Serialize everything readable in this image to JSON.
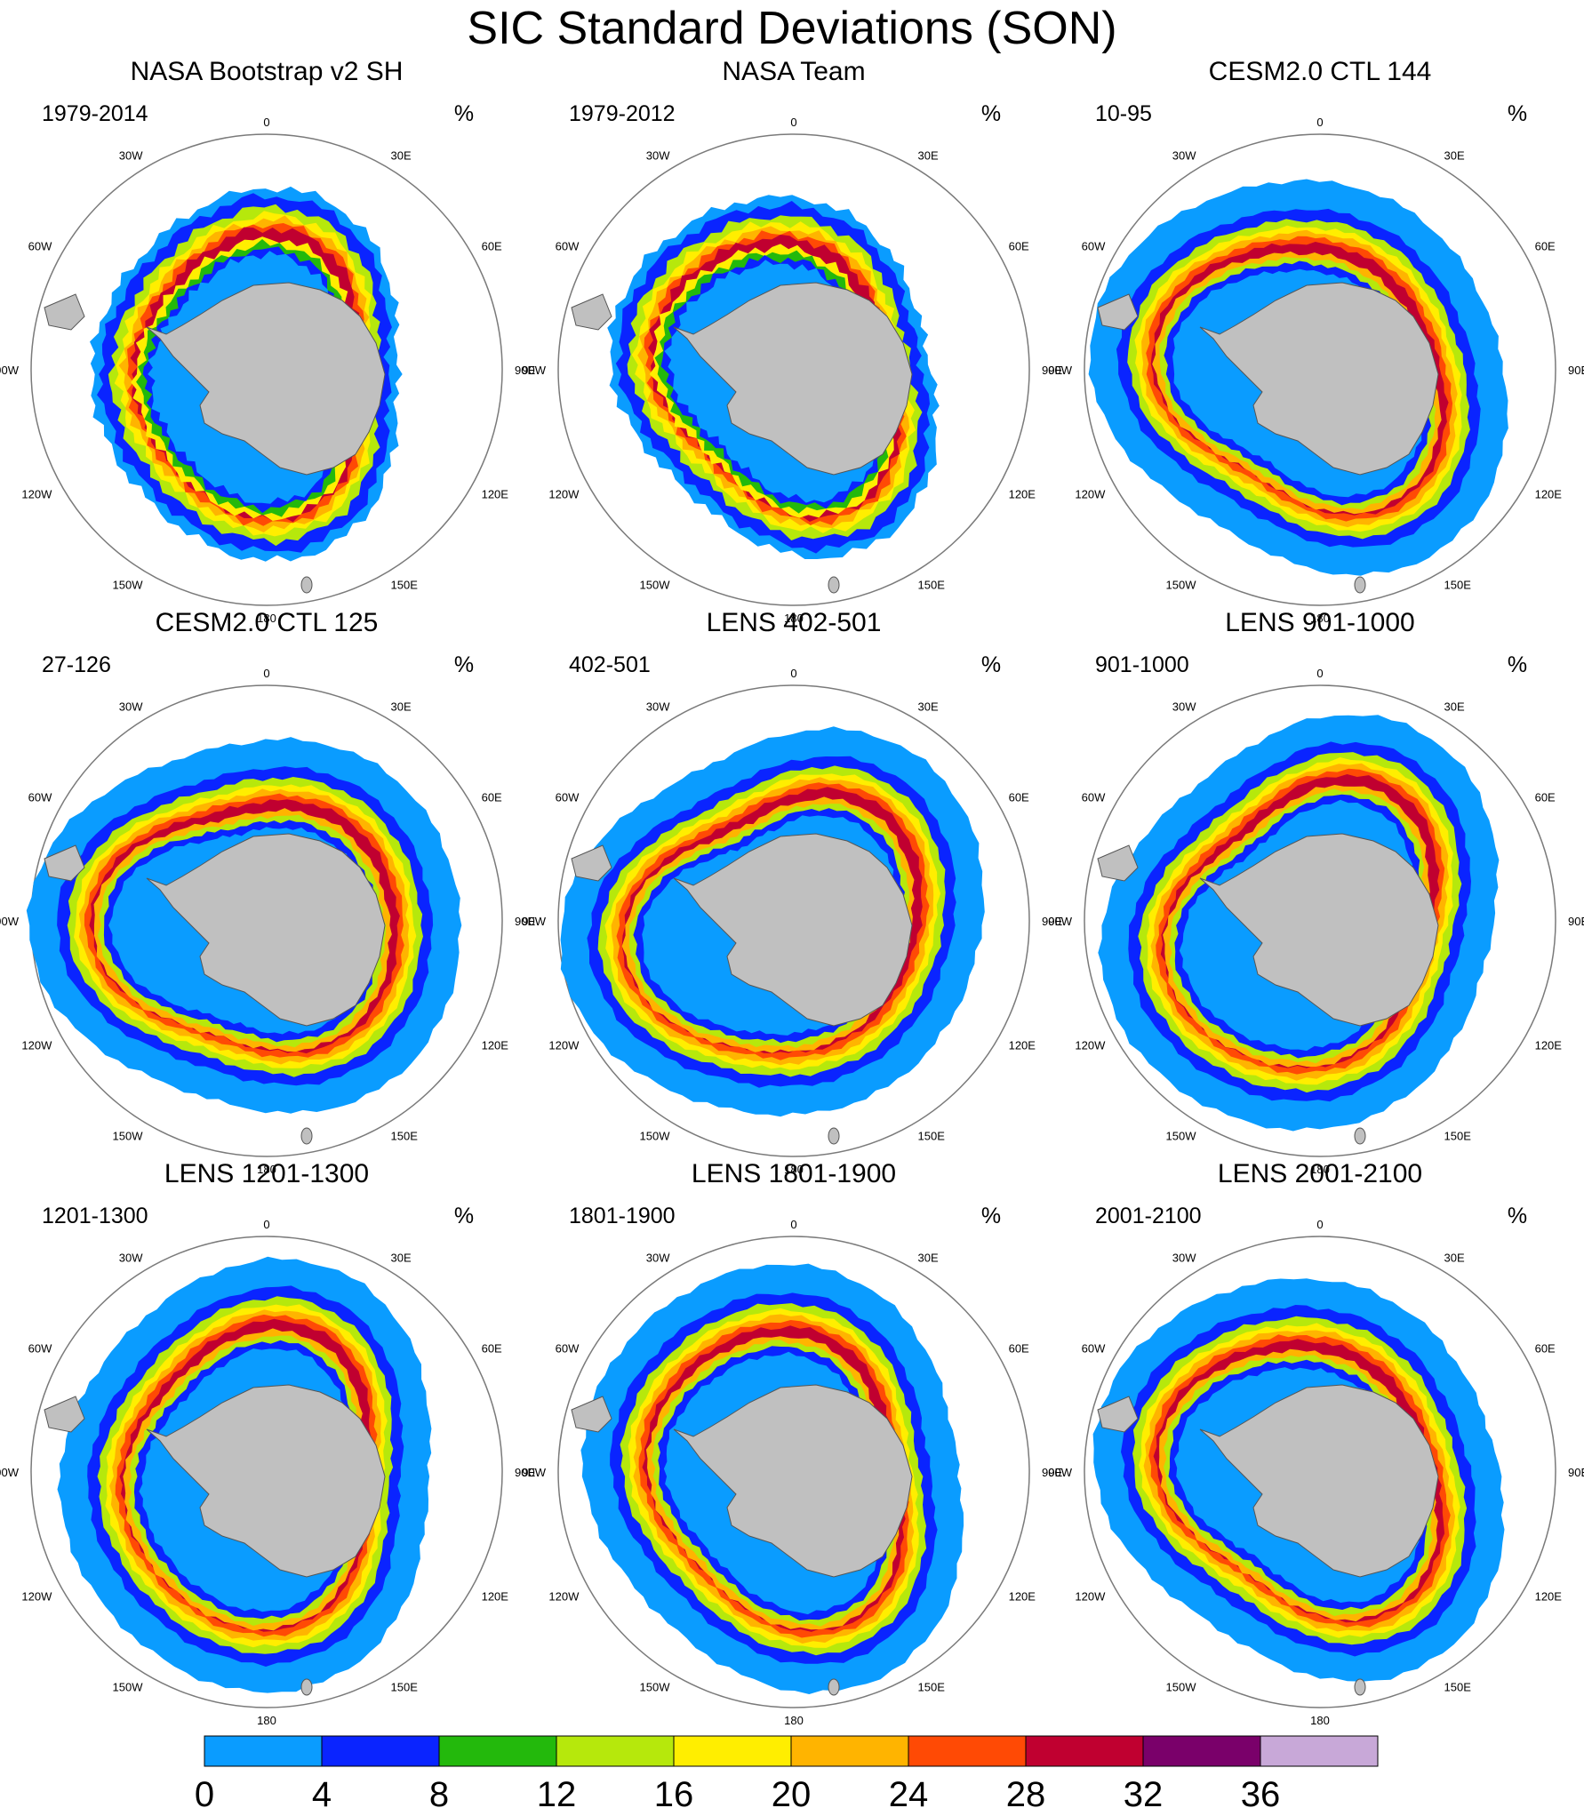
{
  "title": "SIC Standard Deviations (SON)",
  "unit_label": "%",
  "lon_labels": [
    "0",
    "30E",
    "60E",
    "90E",
    "120E",
    "150E",
    "180",
    "150W",
    "120W",
    "90W",
    "60W",
    "30W"
  ],
  "colors": {
    "land": "#c0c0c0",
    "coast": "#555555",
    "ring": "#7a7a7a"
  },
  "panel_labels": [
    {
      "title": "NASA Bootstrap v2 SH",
      "period": "1979-2014"
    },
    {
      "title": "NASA Team",
      "period": "1979-2012"
    },
    {
      "title": "CESM2.0 CTL 144",
      "period": "10-95"
    },
    {
      "title": "CESM2.0 CTL 125",
      "period": "27-126"
    },
    {
      "title": "LENS 402-501",
      "period": "402-501"
    },
    {
      "title": "LENS 901-1000",
      "period": "901-1000"
    },
    {
      "title": "LENS 1201-1300",
      "period": "1201-1300"
    },
    {
      "title": "LENS 1801-1900",
      "period": "1801-1900"
    },
    {
      "title": "LENS 2001-2100",
      "period": "2001-2100"
    }
  ],
  "chart_data": {
    "type": "heatmap",
    "title": "SIC Standard Deviations (SON)",
    "projection": "south polar stereographic",
    "units": "%",
    "colorbar": {
      "orientation": "horizontal",
      "placement": "bottom",
      "levels": [
        0,
        4,
        8,
        12,
        16,
        20,
        24,
        28,
        32,
        36
      ],
      "tick_labels": [
        "0",
        "4",
        "8",
        "12",
        "16",
        "20",
        "24",
        "28",
        "32",
        "36"
      ],
      "colors": [
        "#0a9cff",
        "#0a24ff",
        "#23b90c",
        "#b6e80c",
        "#ffee00",
        "#ffb400",
        "#ff4a05",
        "#c00030",
        "#7a006a",
        "#c8a8d8"
      ]
    },
    "panels": [
      {
        "title": "NASA Bootstrap v2 SH",
        "period": "1979-2014",
        "band_peak_sd": 32,
        "max_sd": 32
      },
      {
        "title": "NASA Team",
        "period": "1979-2012",
        "band_peak_sd": 28,
        "max_sd": 28
      },
      {
        "title": "CESM2.0 CTL 144",
        "period": "10-95",
        "band_peak_sd": 32,
        "max_sd": 32
      },
      {
        "title": "CESM2.0 CTL 125",
        "period": "27-126",
        "band_peak_sd": 32,
        "max_sd": 32
      },
      {
        "title": "LENS 402-501",
        "period": "402-501",
        "band_peak_sd": 32,
        "max_sd": 32
      },
      {
        "title": "LENS 901-1000",
        "period": "901-1000",
        "band_peak_sd": 32,
        "max_sd": 32
      },
      {
        "title": "LENS 1201-1300",
        "period": "1201-1300",
        "band_peak_sd": 32,
        "max_sd": 32
      },
      {
        "title": "LENS 1801-1900",
        "period": "1801-1900",
        "band_peak_sd": 32,
        "max_sd": 32
      },
      {
        "title": "LENS 2001-2100",
        "period": "2001-2100",
        "band_peak_sd": 32,
        "max_sd": 32
      }
    ]
  }
}
